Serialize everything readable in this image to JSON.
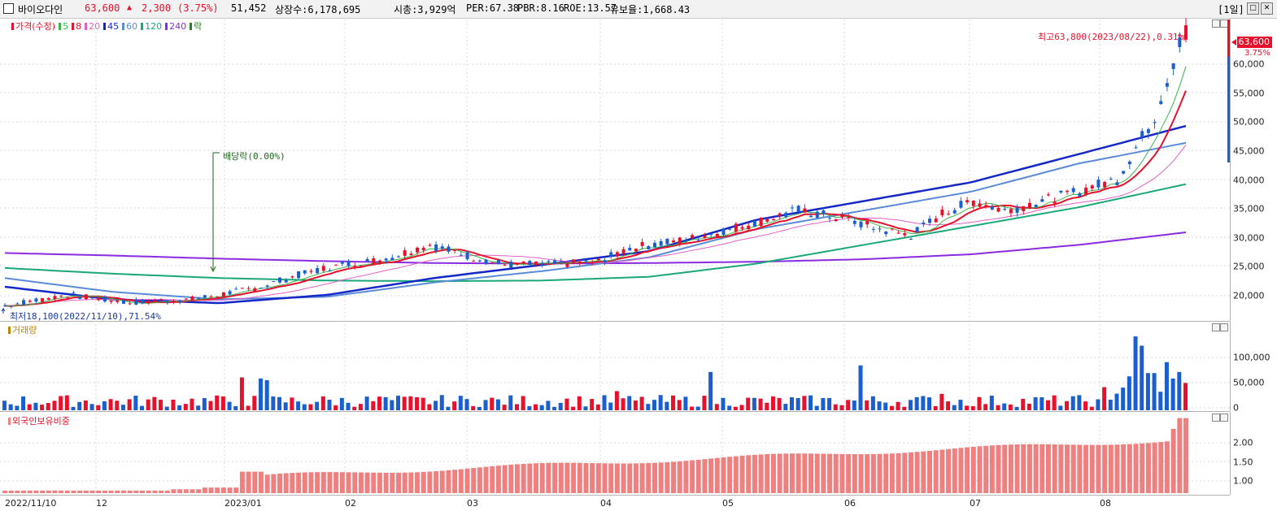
{
  "header": {
    "name": "바이오다인",
    "price": "63,600",
    "change_arrow": "▲",
    "change": "2,300",
    "change_pct": "(3.75%)",
    "volume": "51,452",
    "shares": "상장수:6,178,695",
    "mcap": "시총:3,929억",
    "per": "PER:67.38",
    "pbr": "PBR:8.16",
    "roe": "ROE:13.57",
    "float": "유보율:1,668.43",
    "period": "[1일]"
  },
  "colors": {
    "up": "#e8102a",
    "down": "#1a5fd0",
    "ma5": "#39b54a",
    "ma8": "#e8102a",
    "ma20": "#e060c8",
    "ma45": "#1428c8",
    "ma60": "#5a8ad8",
    "ma120": "#1aa87a",
    "ma240": "#8a2be0",
    "foreign": "#f08080"
  },
  "price_panel": {
    "legend": [
      {
        "label": "가격(수정)",
        "color": "#e8102a"
      },
      {
        "label": "5",
        "color": "#39b54a"
      },
      {
        "label": "8",
        "color": "#e8102a"
      },
      {
        "label": "20",
        "color": "#e060c8"
      },
      {
        "label": "45",
        "color": "#1428c8"
      },
      {
        "label": "60",
        "color": "#5a8ad8"
      },
      {
        "label": "120",
        "color": "#1aa87a"
      },
      {
        "label": "240",
        "color": "#8a2be0"
      },
      {
        "label": "락",
        "color": "#1a8a1a"
      }
    ],
    "y_ticks": [
      "60,000",
      "55,000",
      "50,000",
      "45,000",
      "40,000",
      "35,000",
      "30,000",
      "25,000",
      "20,000"
    ],
    "current_price_label": "63,600",
    "current_pct_label": "3.75%",
    "high_note": "최고63,800(2023/08/22),0.31%",
    "low_note": "최저18,100(2022/11/10),71.54%",
    "ex_dividend_note": "배당락(0.00%)"
  },
  "volume_panel": {
    "legend": "거래량",
    "y_ticks": [
      "100,000",
      "50,000",
      "0"
    ]
  },
  "foreign_panel": {
    "legend": "외국인보유비중",
    "y_ticks": [
      "2.00",
      "1.50",
      "1.00"
    ]
  },
  "x_labels": [
    "2022/11/10",
    "12",
    "2023/01",
    "02",
    "03",
    "04",
    "05",
    "06",
    "07",
    "08"
  ],
  "chart_data": {
    "type": "candlestick",
    "start_close": 18800,
    "end_close": 63600,
    "high": 63800,
    "low": 18100,
    "ylim": [
      17000,
      64000
    ],
    "moving_averages": {
      "ma240": [
        27200,
        26800,
        26300,
        25900,
        25600,
        25500,
        25600,
        25800,
        26200,
        27000,
        28500,
        30500
      ],
      "ma120": [
        24800,
        23900,
        23200,
        22800,
        22700,
        22800,
        23400,
        25500,
        28500,
        31500,
        34500,
        38200
      ],
      "ma60": [
        23200,
        21000,
        19800,
        20200,
        22500,
        24300,
        26500,
        31000,
        34000,
        37000,
        41500,
        44800
      ],
      "ma45": [
        21800,
        19800,
        19200,
        20500,
        23200,
        25300,
        27500,
        32500,
        35500,
        38500,
        43000,
        47500
      ]
    },
    "volume_ylim": [
      0,
      150000
    ],
    "foreign_ylim": [
      0.8,
      2.6
    ]
  }
}
